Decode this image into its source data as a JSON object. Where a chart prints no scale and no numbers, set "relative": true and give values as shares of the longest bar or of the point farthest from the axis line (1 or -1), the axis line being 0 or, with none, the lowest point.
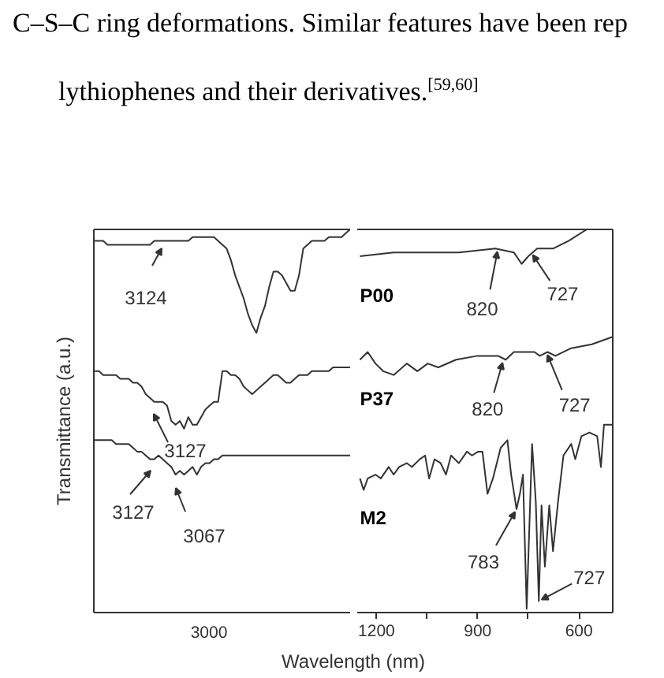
{
  "chart_data": [
    {
      "type": "line",
      "relative": true,
      "ylabel": "Transmittance (a.u.)",
      "xlabel": "Wavelength (nm)",
      "annotations": [
        "C–S–C ring deformations. Similar features have been rep",
        "lythiophenes and their derivatives.$^{[59,60]}$",
        "3124",
        "3127",
        "3127",
        "3067",
        "3000"
      ],
      "categories": [
        null,
        null,
        null,
        null,
        null,
        null,
        null,
        null,
        null,
        null,
        null,
        null,
        null,
        null,
        null,
        null,
        null,
        null,
        null,
        null,
        null,
        null,
        null,
        null,
        null,
        null,
        null,
        null,
        null,
        null,
        null,
        null,
        null,
        null,
        null,
        null,
        null,
        null,
        null,
        null,
        null,
        null,
        null,
        null,
        null,
        null,
        null,
        null,
        null,
        null,
        null,
        null,
        null,
        null,
        null,
        null,
        null,
        null,
        null,
        null,
        null
      ],
      "series": [
        {
          "color": "#333333",
          "values": [
            0.97,
            0.97,
            0.97,
            0.96,
            0.96,
            0.96,
            0.96,
            0.96,
            0.96,
            0.96,
            0.96,
            0.96,
            0.96,
            0.96,
            0.97,
            0.97,
            0.97,
            0.97,
            0.97,
            0.97,
            0.97,
            0.97,
            0.97,
            0.98,
            0.98,
            0.98,
            0.98,
            0.98,
            0.98,
            0.97,
            0.96,
            0.95,
            0.92,
            0.88,
            0.85,
            0.82,
            0.78,
            0.75,
            0.73,
            0.77,
            0.8,
            0.85,
            0.89,
            0.89,
            0.88,
            0.86,
            0.84,
            0.84,
            0.88,
            0.95,
            0.96,
            0.97,
            0.97,
            0.97,
            0.97,
            0.98,
            0.98,
            0.98,
            0.98,
            0.99,
            1.0
          ]
        },
        {
          "color": "#333333",
          "values": [
            0.63,
            0.63,
            0.62,
            0.62,
            0.62,
            0.62,
            0.61,
            0.61,
            0.61,
            0.6,
            0.6,
            0.59,
            0.57,
            0.56,
            0.55,
            0.55,
            0.55,
            0.54,
            0.5,
            0.49,
            0.5,
            0.48,
            0.51,
            0.49,
            0.49,
            0.51,
            0.53,
            0.54,
            0.55,
            0.55,
            0.63,
            0.63,
            0.62,
            0.62,
            0.61,
            0.59,
            0.58,
            0.57,
            0.58,
            0.59,
            0.6,
            0.61,
            0.62,
            0.62,
            0.61,
            0.6,
            0.6,
            0.61,
            0.62,
            0.62,
            0.62,
            0.63,
            0.63,
            0.63,
            0.63,
            0.63,
            0.64,
            0.64,
            0.64,
            0.64,
            0.64
          ]
        },
        {
          "color": "#333333",
          "values": [
            0.45,
            0.45,
            0.45,
            0.45,
            0.45,
            0.44,
            0.44,
            0.44,
            0.44,
            0.43,
            0.42,
            0.42,
            0.41,
            0.4,
            0.4,
            0.41,
            0.4,
            0.39,
            0.38,
            0.36,
            0.37,
            0.36,
            0.37,
            0.38,
            0.36,
            0.38,
            0.39,
            0.39,
            0.4,
            0.4,
            0.41,
            0.41,
            0.41,
            0.41,
            0.41,
            0.41,
            0.41,
            0.41,
            0.41,
            0.41,
            0.41,
            0.41,
            0.41,
            0.41,
            0.41,
            0.41,
            0.41,
            0.41,
            0.41,
            0.41,
            0.41,
            0.41,
            0.41,
            0.41,
            0.41,
            0.41,
            0.41,
            0.41,
            0.41,
            0.41,
            0.41
          ]
        }
      ]
    },
    {
      "type": "line",
      "relative": true,
      "annotations": [
        {
          "text": "820",
          "x": 840,
          "y": 0.95
        },
        {
          "text": "727",
          "x": 742,
          "y": 0.94
        },
        {
          "text": "820",
          "x": 824,
          "y": 0.66
        },
        {
          "text": "727",
          "x": 697,
          "y": 0.68
        },
        {
          "text": "783",
          "x": 785,
          "y": 0.27
        },
        {
          "text": "727",
          "x": 719,
          "y": 0.03
        }
      ],
      "xlim": [
        1257,
        500
      ],
      "xticks": [
        1200,
        {
          "value": 1050,
          "label": null
        },
        900,
        {
          "value": 750,
          "label": null
        },
        600
      ],
      "series": [
        {
          "name": "P00",
          "color": "#333333",
          "x": [
            1249,
            1149,
            1064,
            956,
            848,
            793,
            770,
            750,
            724,
            677,
            631,
            577
          ],
          "values": [
            0.93,
            0.94,
            0.94,
            0.94,
            0.95,
            0.94,
            0.91,
            0.93,
            0.95,
            0.95,
            0.97,
            1.0
          ]
        },
        {
          "name": "P37",
          "color": "#333333",
          "x": [
            1249,
            1226,
            1203,
            1180,
            1149,
            1110,
            1079,
            1048,
            1017,
            964,
            901,
            840,
            817,
            793,
            732,
            716,
            693,
            670,
            623,
            562,
            500
          ],
          "values": [
            0.66,
            0.68,
            0.65,
            0.63,
            0.62,
            0.65,
            0.63,
            0.65,
            0.64,
            0.66,
            0.67,
            0.67,
            0.66,
            0.68,
            0.68,
            0.67,
            0.68,
            0.67,
            0.69,
            0.7,
            0.72
          ]
        },
        {
          "name": "M2",
          "color": "#333333",
          "x": [
            1249,
            1238,
            1226,
            1203,
            1187,
            1164,
            1149,
            1133,
            1110,
            1095,
            1072,
            1056,
            1044,
            1028,
            1010,
            994,
            979,
            956,
            932,
            917,
            899,
            886,
            871,
            855,
            832,
            812,
            801,
            785,
            775,
            766,
            755,
            739,
            728,
            719,
            711,
            701,
            688,
            677,
            662,
            646,
            623,
            611,
            593,
            569,
            546,
            535,
            526,
            500
          ],
          "values": [
            0.35,
            0.32,
            0.35,
            0.36,
            0.35,
            0.38,
            0.36,
            0.38,
            0.39,
            0.38,
            0.4,
            0.41,
            0.35,
            0.4,
            0.39,
            0.36,
            0.41,
            0.39,
            0.42,
            0.41,
            0.42,
            0.42,
            0.31,
            0.35,
            0.43,
            0.45,
            0.36,
            0.27,
            0.31,
            0.36,
            0.01,
            0.44,
            0.29,
            0.03,
            0.28,
            0.12,
            0.28,
            0.16,
            0.29,
            0.41,
            0.44,
            0.4,
            0.46,
            0.47,
            0.46,
            0.38,
            0.49,
            0.49
          ]
        }
      ]
    }
  ]
}
